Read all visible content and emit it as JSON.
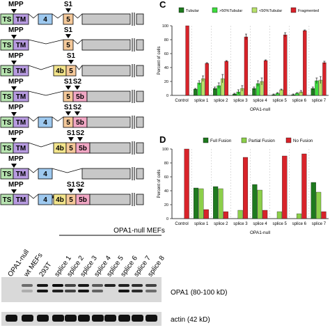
{
  "diagram": {
    "rows": [
      {
        "mpp": "MPP",
        "s1": "S1",
        "s2": "",
        "boxes": [
          {
            "t": "TS",
            "c": "#b7e3b0"
          },
          {
            "t": "TM",
            "c": "#b79be0"
          },
          {
            "t": "4",
            "c": "#9ec9ef"
          },
          {
            "t": "5",
            "c": "#f5c99a"
          }
        ]
      },
      {
        "mpp": "MPP",
        "s1": "S1",
        "s2": "",
        "boxes": [
          {
            "t": "TS",
            "c": "#b7e3b0"
          },
          {
            "t": "TM",
            "c": "#b79be0"
          },
          {
            "t": "5",
            "c": "#f5c99a"
          }
        ]
      },
      {
        "mpp": "MPP",
        "s1": "S1",
        "s2": "",
        "boxes": [
          {
            "t": "TS",
            "c": "#b7e3b0"
          },
          {
            "t": "TM",
            "c": "#b79be0"
          },
          {
            "t": "4b",
            "c": "#f3e58c"
          },
          {
            "t": "5",
            "c": "#f5c99a"
          }
        ]
      },
      {
        "mpp": "MPP",
        "s1": "S1",
        "s2": "S2",
        "boxes": [
          {
            "t": "TS",
            "c": "#b7e3b0"
          },
          {
            "t": "TM",
            "c": "#b79be0"
          },
          {
            "t": "5",
            "c": "#f5c99a"
          },
          {
            "t": "5b",
            "c": "#f1a7c4"
          }
        ]
      },
      {
        "mpp": "MPP",
        "s1": "S1",
        "s2": "S2",
        "boxes": [
          {
            "t": "TS",
            "c": "#b7e3b0"
          },
          {
            "t": "TM",
            "c": "#b79be0"
          },
          {
            "t": "4",
            "c": "#9ec9ef"
          },
          {
            "t": "5",
            "c": "#f5c99a"
          },
          {
            "t": "5b",
            "c": "#f1a7c4"
          }
        ]
      },
      {
        "mpp": "MPP",
        "s1": "S1",
        "s2": "S2",
        "boxes": [
          {
            "t": "TS",
            "c": "#b7e3b0"
          },
          {
            "t": "TM",
            "c": "#b79be0"
          },
          {
            "t": "4b",
            "c": "#f3e58c"
          },
          {
            "t": "5",
            "c": "#f5c99a"
          },
          {
            "t": "5b",
            "c": "#f1a7c4"
          }
        ]
      },
      {
        "mpp": "MPP",
        "s1": "",
        "s2": "",
        "boxes": [
          {
            "t": "TS",
            "c": "#b7e3b0"
          },
          {
            "t": "TM",
            "c": "#b79be0"
          },
          {
            "t": "4",
            "c": "#9ec9ef"
          }
        ]
      },
      {
        "mpp": "MPP",
        "s1": "S1",
        "s2": "S2",
        "boxes": [
          {
            "t": "TS",
            "c": "#b7e3b0"
          },
          {
            "t": "TM",
            "c": "#b79be0"
          },
          {
            "t": "4",
            "c": "#9ec9ef"
          },
          {
            "t": "4b",
            "c": "#f3e58c"
          },
          {
            "t": "5",
            "c": "#f5c99a"
          },
          {
            "t": "5b",
            "c": "#f1a7c4"
          }
        ]
      }
    ]
  },
  "panel_c_label": "C",
  "panel_d_label": "D",
  "blot": {
    "header": "OPA1-null MEFs",
    "lanes": [
      "OPA1-null",
      "wt MEFs",
      "293T",
      "splice 1",
      "splice 2",
      "splice 3",
      "splice 4",
      "splice 5",
      "splice 6",
      "splice 7",
      "splice 8"
    ],
    "band_labels": [
      "OPA1 (80-100 kD)",
      "actin (42 kD)"
    ]
  },
  "chart_data": [
    {
      "type": "bar",
      "panel": "C",
      "categories": [
        "Control",
        "splice 1",
        "splice 2",
        "splice 3",
        "splice 4",
        "splice 5",
        "splice 6",
        "splice 7"
      ],
      "group_caption": "OPA1-null",
      "xlabel": "",
      "ylabel": "Percent of cells",
      "ylim": [
        0,
        100
      ],
      "yticks": [
        "0",
        "20",
        "40",
        "60",
        "80",
        "100"
      ],
      "legend_position": "top",
      "series": [
        {
          "name": "Tubular",
          "color": "#1e7a1e",
          "values": [
            0,
            9,
            10,
            2,
            10,
            1,
            1,
            10
          ]
        },
        {
          "name": ">50%Tubular",
          "color": "#3ddc3d",
          "values": [
            0,
            18,
            14,
            5,
            17,
            3,
            3,
            21
          ]
        },
        {
          "name": "<50%Tubular",
          "color": "#b6e06a",
          "values": [
            0,
            24,
            24,
            10,
            20,
            8,
            5,
            22
          ]
        },
        {
          "name": "Fragmented",
          "color": "#d8232a",
          "values": [
            100,
            46,
            49,
            84,
            50,
            87,
            93,
            47
          ]
        }
      ],
      "errors": [
        [
          0,
          1,
          2,
          1,
          2,
          1,
          1,
          2
        ],
        [
          0,
          3,
          4,
          3,
          4,
          1,
          1,
          4
        ],
        [
          0,
          4,
          6,
          4,
          5,
          1,
          2,
          5
        ],
        [
          0,
          1,
          1,
          4,
          1,
          3,
          1,
          2
        ]
      ]
    },
    {
      "type": "bar",
      "panel": "D",
      "categories": [
        "Control",
        "splice 1",
        "splice 2",
        "splice 3",
        "splice 4",
        "splice 5",
        "splice 6",
        "splice 7"
      ],
      "group_caption": "OPA1-null",
      "xlabel": "",
      "ylabel": "Percent of cells",
      "ylim": [
        0,
        100
      ],
      "yticks": [
        "0",
        "20",
        "40",
        "60",
        "80",
        "100"
      ],
      "legend_position": "top",
      "series": [
        {
          "name": "Full Fusion",
          "color": "#1e7a1e",
          "values": [
            0,
            44,
            46,
            0,
            49,
            0,
            0,
            52
          ]
        },
        {
          "name": "Partial Fusion",
          "color": "#8ccf4a",
          "values": [
            0,
            43,
            43,
            12,
            41,
            10,
            7,
            38
          ]
        },
        {
          "name": "No Fusion",
          "color": "#d8232a",
          "values": [
            100,
            13,
            10,
            88,
            12,
            90,
            93,
            10
          ]
        }
      ]
    }
  ]
}
